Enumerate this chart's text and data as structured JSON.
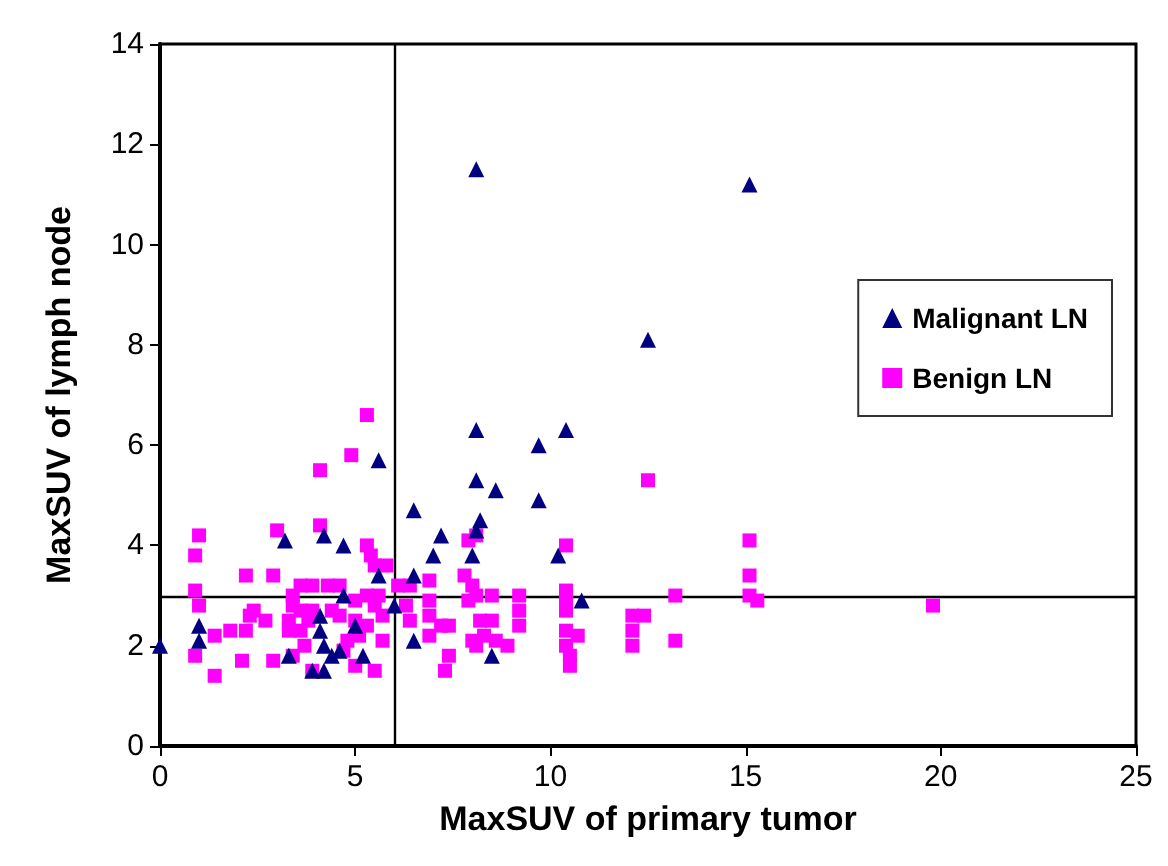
{
  "chart_data": {
    "type": "scatter",
    "xlabel": "MaxSUV of primary tumor",
    "ylabel": "MaxSUV of lymph node",
    "xlim": [
      0,
      25
    ],
    "xticks": [
      0,
      5,
      10,
      15,
      20,
      25
    ],
    "ylim": [
      0,
      14
    ],
    "yticks": [
      0,
      2,
      4,
      6,
      8,
      10,
      12,
      14
    ],
    "grid": false,
    "legend": "right",
    "ref_lines": [
      {
        "axis": "x",
        "value": 6,
        "color": "#000000"
      },
      {
        "axis": "y",
        "value": 3,
        "color": "#000000"
      }
    ],
    "series": [
      {
        "name": "Malignant LN",
        "color": "#000080",
        "marker": "triangle",
        "x": [
          0,
          1.0,
          1.0,
          3.2,
          4.2,
          4.7,
          5.6,
          5.6,
          4.7,
          4.1,
          4.1,
          4.2,
          3.3,
          3.9,
          4.2,
          4.4,
          4.6,
          5.2,
          5.0,
          6.0,
          6.5,
          6.5,
          6.5,
          7.2,
          7.0,
          8.1,
          8.1,
          8.6,
          8.2,
          8.0,
          8.5,
          8.1,
          8.1,
          12.5,
          15.1,
          10.4,
          9.7,
          9.7,
          10.2,
          10.8
        ],
        "values": [
          2.0,
          2.4,
          2.1,
          4.1,
          4.2,
          4.0,
          5.7,
          3.4,
          3.0,
          2.6,
          2.3,
          2.0,
          1.8,
          1.5,
          1.5,
          1.8,
          1.9,
          1.8,
          2.4,
          2.8,
          4.7,
          3.4,
          2.1,
          4.2,
          3.8,
          6.3,
          5.3,
          5.1,
          4.5,
          3.8,
          1.8,
          4.3,
          11.5,
          8.1,
          11.2,
          6.3,
          6.0,
          4.9,
          3.8,
          2.9
        ]
      },
      {
        "name": "Benign LN",
        "color": "#ff00ff",
        "marker": "square",
        "x": [
          5.3,
          4.9,
          4.1,
          4.1,
          3.0,
          1.0,
          0.9,
          0.9,
          1.0,
          0.9,
          1.4,
          1.4,
          1.8,
          2.2,
          2.1,
          2.2,
          2.9,
          2.3,
          2.4,
          2.7,
          2.9,
          3.4,
          3.4,
          3.3,
          3.3,
          3.4,
          3.6,
          3.9,
          4.3,
          4.6,
          3.6,
          3.9,
          3.8,
          3.6,
          3.7,
          3.9,
          4.4,
          4.6,
          4.7,
          4.8,
          5.0,
          5.0,
          5.0,
          5.1,
          5.3,
          5.4,
          5.5,
          5.8,
          5.3,
          5.6,
          5.5,
          5.7,
          5.3,
          5.7,
          5.5,
          6.1,
          6.4,
          6.3,
          6.4,
          6.9,
          6.9,
          6.9,
          7.2,
          7.4,
          6.9,
          7.4,
          7.3,
          7.8,
          7.9,
          8.1,
          7.9,
          8.2,
          8.0,
          8.0,
          8.1,
          8.5,
          8.5,
          8.1,
          8.6,
          8.3,
          9.2,
          9.2,
          9.2,
          8.9,
          10.4,
          10.4,
          10.4,
          10.4,
          10.4,
          10.7,
          10.4,
          10.5,
          10.5,
          12.1,
          12.4,
          12.1,
          12.1,
          12.5,
          13.2,
          13.2,
          15.1,
          15.1,
          15.1,
          15.3,
          19.8
        ],
        "values": [
          6.6,
          5.8,
          5.5,
          4.4,
          4.3,
          4.2,
          3.8,
          3.1,
          2.8,
          1.8,
          2.2,
          1.4,
          2.3,
          2.3,
          1.7,
          3.4,
          3.4,
          2.6,
          2.7,
          2.5,
          1.7,
          3.0,
          2.8,
          2.5,
          2.3,
          1.8,
          3.2,
          3.2,
          3.2,
          3.2,
          2.7,
          2.7,
          2.5,
          2.3,
          2.0,
          1.5,
          2.7,
          2.6,
          1.9,
          2.1,
          2.9,
          2.5,
          1.6,
          2.2,
          4.0,
          3.8,
          3.6,
          3.6,
          3.0,
          3.0,
          2.8,
          2.6,
          2.4,
          2.1,
          1.5,
          3.2,
          3.2,
          2.8,
          2.5,
          3.3,
          2.9,
          2.6,
          2.4,
          2.4,
          2.2,
          1.8,
          1.5,
          3.4,
          4.1,
          4.2,
          2.9,
          2.5,
          2.1,
          3.2,
          2.0,
          3.0,
          2.5,
          3.0,
          2.1,
          2.2,
          3.0,
          2.7,
          2.4,
          2.0,
          4.0,
          3.1,
          2.9,
          2.7,
          2.3,
          2.2,
          2.0,
          1.8,
          1.6,
          2.6,
          2.6,
          2.3,
          2.0,
          5.3,
          3.0,
          2.1,
          4.1,
          3.4,
          3.0,
          2.9,
          2.8
        ]
      }
    ]
  }
}
